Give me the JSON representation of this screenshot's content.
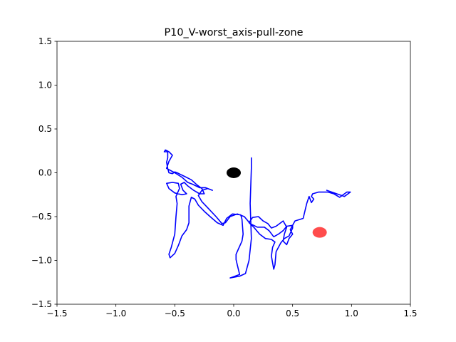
{
  "chart_data": {
    "type": "line",
    "title": "P10_V-worst_axis-pull-zone",
    "xlabel": "",
    "ylabel": "",
    "xlim": [
      -1.5,
      1.5
    ],
    "ylim": [
      -1.5,
      1.5
    ],
    "grid": false,
    "x_ticks": [
      -1.5,
      -1.0,
      -0.5,
      0.0,
      0.5,
      1.0,
      1.5
    ],
    "x_tick_labels": [
      "−1.5",
      "−1.0",
      "−0.5",
      "0.0",
      "0.5",
      "1.0",
      "1.5"
    ],
    "y_ticks": [
      -1.5,
      -1.0,
      -0.5,
      0.0,
      0.5,
      1.0,
      1.5
    ],
    "y_tick_labels": [
      "−1.5",
      "−1.0",
      "−0.5",
      "0.0",
      "0.5",
      "1.0",
      "1.5"
    ],
    "trajectory_color": "#0000ff",
    "trajectory": [
      [
        0.79,
        -0.2
      ],
      [
        0.94,
        -0.27
      ],
      [
        0.99,
        -0.22
      ],
      [
        0.96,
        -0.22
      ],
      [
        0.9,
        -0.28
      ],
      [
        0.85,
        -0.24
      ],
      [
        0.8,
        -0.22
      ],
      [
        0.72,
        -0.22
      ],
      [
        0.67,
        -0.24
      ],
      [
        0.66,
        -0.27
      ],
      [
        0.68,
        -0.3
      ],
      [
        0.66,
        -0.34
      ],
      [
        0.64,
        -0.27
      ],
      [
        0.62,
        -0.35
      ],
      [
        0.59,
        -0.52
      ],
      [
        0.52,
        -0.55
      ],
      [
        0.48,
        -0.65
      ],
      [
        0.5,
        -0.7
      ],
      [
        0.47,
        -0.75
      ],
      [
        0.45,
        -0.82
      ],
      [
        0.42,
        -0.78
      ],
      [
        0.43,
        -0.7
      ],
      [
        0.45,
        -0.62
      ],
      [
        0.42,
        -0.55
      ],
      [
        0.36,
        -0.61
      ],
      [
        0.32,
        -0.63
      ],
      [
        0.29,
        -0.58
      ],
      [
        0.25,
        -0.55
      ],
      [
        0.21,
        -0.5
      ],
      [
        0.16,
        -0.51
      ],
      [
        0.13,
        -0.57
      ],
      [
        0.17,
        -0.62
      ],
      [
        0.22,
        -0.7
      ],
      [
        0.27,
        -0.75
      ],
      [
        0.32,
        -0.76
      ],
      [
        0.35,
        -0.79
      ],
      [
        0.33,
        -0.85
      ],
      [
        0.32,
        -0.95
      ],
      [
        0.34,
        -1.1
      ],
      [
        0.35,
        -1.05
      ],
      [
        0.36,
        -0.9
      ],
      [
        0.4,
        -0.8
      ],
      [
        0.43,
        -0.75
      ],
      [
        0.47,
        -0.72
      ],
      [
        0.5,
        -0.63
      ],
      [
        0.5,
        -0.6
      ],
      [
        0.45,
        -0.61
      ],
      [
        0.42,
        -0.66
      ],
      [
        0.38,
        -0.7
      ],
      [
        0.34,
        -0.73
      ],
      [
        0.3,
        -0.66
      ],
      [
        0.26,
        -0.62
      ],
      [
        0.2,
        -0.62
      ],
      [
        0.14,
        -0.58
      ],
      [
        0.09,
        -0.5
      ],
      [
        0.03,
        -0.47
      ],
      [
        -0.03,
        -0.5
      ],
      [
        -0.07,
        -0.57
      ],
      [
        -0.1,
        -0.58
      ],
      [
        -0.15,
        -0.5
      ],
      [
        -0.22,
        -0.4
      ],
      [
        -0.27,
        -0.33
      ],
      [
        -0.3,
        -0.26
      ],
      [
        -0.27,
        -0.2
      ],
      [
        -0.22,
        -0.18
      ],
      [
        -0.18,
        -0.2
      ],
      [
        -0.24,
        -0.17
      ],
      [
        -0.29,
        -0.17
      ],
      [
        -0.35,
        -0.13
      ],
      [
        -0.39,
        -0.11
      ],
      [
        -0.44,
        -0.05
      ],
      [
        -0.5,
        0.0
      ],
      [
        -0.57,
        0.05
      ],
      [
        -0.55,
        0.13
      ],
      [
        -0.52,
        0.2
      ],
      [
        -0.55,
        0.24
      ],
      [
        -0.58,
        0.26
      ],
      [
        -0.59,
        0.24
      ],
      [
        -0.56,
        0.24
      ],
      [
        -0.56,
        0.17
      ],
      [
        -0.57,
        0.12
      ],
      [
        -0.56,
        0.05
      ],
      [
        -0.55,
        0.0
      ],
      [
        -0.52,
        -0.01
      ],
      [
        -0.5,
        0.01
      ],
      [
        -0.48,
        0.0
      ],
      [
        -0.42,
        -0.04
      ],
      [
        -0.36,
        -0.08
      ],
      [
        -0.31,
        -0.14
      ],
      [
        -0.27,
        -0.18
      ],
      [
        -0.25,
        -0.24
      ],
      [
        -0.29,
        -0.24
      ],
      [
        -0.34,
        -0.2
      ],
      [
        -0.39,
        -0.15
      ],
      [
        -0.42,
        -0.11
      ],
      [
        -0.45,
        -0.13
      ],
      [
        -0.43,
        -0.2
      ],
      [
        -0.4,
        -0.24
      ],
      [
        -0.44,
        -0.25
      ],
      [
        -0.5,
        -0.23
      ],
      [
        -0.55,
        -0.18
      ],
      [
        -0.57,
        -0.12
      ],
      [
        -0.52,
        -0.11
      ],
      [
        -0.47,
        -0.12
      ],
      [
        -0.46,
        -0.18
      ],
      [
        -0.49,
        -0.27
      ],
      [
        -0.48,
        -0.35
      ],
      [
        -0.49,
        -0.5
      ],
      [
        -0.5,
        -0.7
      ],
      [
        -0.53,
        -0.85
      ],
      [
        -0.55,
        -0.93
      ],
      [
        -0.54,
        -0.97
      ],
      [
        -0.5,
        -0.92
      ],
      [
        -0.47,
        -0.83
      ],
      [
        -0.44,
        -0.72
      ],
      [
        -0.4,
        -0.65
      ],
      [
        -0.38,
        -0.57
      ],
      [
        -0.38,
        -0.47
      ],
      [
        -0.38,
        -0.38
      ],
      [
        -0.36,
        -0.28
      ],
      [
        -0.33,
        -0.3
      ],
      [
        -0.3,
        -0.37
      ],
      [
        -0.25,
        -0.44
      ],
      [
        -0.2,
        -0.5
      ],
      [
        -0.14,
        -0.57
      ],
      [
        -0.09,
        -0.6
      ],
      [
        -0.06,
        -0.52
      ],
      [
        -0.01,
        -0.47
      ],
      [
        0.06,
        -0.48
      ],
      [
        0.07,
        -0.53
      ],
      [
        0.08,
        -0.7
      ],
      [
        0.07,
        -0.78
      ],
      [
        0.04,
        -0.87
      ],
      [
        0.02,
        -0.93
      ],
      [
        0.02,
        -0.99
      ],
      [
        0.03,
        -1.05
      ],
      [
        0.05,
        -1.16
      ],
      [
        -0.03,
        -1.2
      ],
      [
        0.05,
        -1.18
      ],
      [
        0.1,
        -1.15
      ],
      [
        0.13,
        -1.0
      ],
      [
        0.15,
        -0.75
      ],
      [
        0.14,
        -0.35
      ],
      [
        0.15,
        0.05
      ],
      [
        0.15,
        0.17
      ]
    ],
    "markers": [
      {
        "x": 0.0,
        "y": 0.0,
        "color": "#000000",
        "opacity": 1.0
      },
      {
        "x": 0.73,
        "y": -0.68,
        "color": "#ff0000",
        "opacity": 0.7
      }
    ]
  }
}
